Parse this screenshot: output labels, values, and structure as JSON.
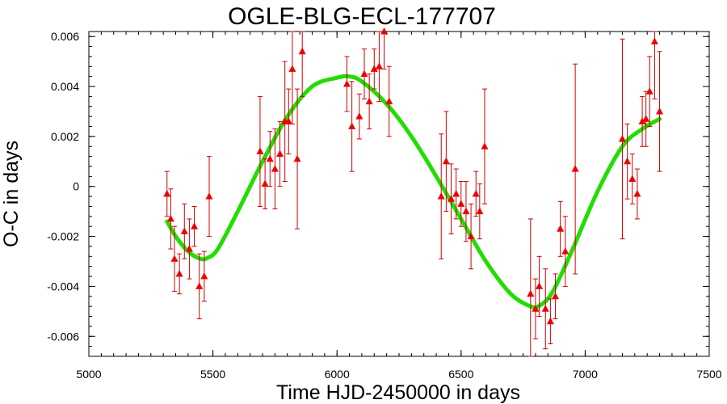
{
  "chart_data": {
    "type": "scatter",
    "title": "OGLE-BLG-ECL-177707",
    "xlabel": "Time HJD-2450000 in days",
    "ylabel": "O-C in days",
    "xlim": [
      5000,
      7500
    ],
    "ylim": [
      -0.0068,
      0.0062
    ],
    "xticks": [
      5000,
      5500,
      6000,
      6500,
      7000,
      7500
    ],
    "xtick_labels": [
      "5000",
      "5500",
      "6000",
      "6500",
      "7000",
      "7500"
    ],
    "yticks": [
      -0.006,
      -0.004,
      -0.002,
      0,
      0.002,
      0.004,
      0.006
    ],
    "ytick_labels": [
      "-0.006",
      "-0.004",
      "-0.002",
      "0",
      "0.002",
      "0.004",
      "0.006"
    ],
    "colors": {
      "points": "#ee0000",
      "error_bars": "#cc0000",
      "fit": "#22dd00"
    },
    "series": [
      {
        "kind": "points_with_error_bars",
        "points": [
          {
            "x": 5315,
            "y": -0.0003,
            "err": 0.0009
          },
          {
            "x": 5330,
            "y": -0.0013,
            "err": 0.0012
          },
          {
            "x": 5345,
            "y": -0.0029,
            "err": 0.0013
          },
          {
            "x": 5365,
            "y": -0.0035,
            "err": 0.0008
          },
          {
            "x": 5385,
            "y": -0.0018,
            "err": 0.0011
          },
          {
            "x": 5405,
            "y": -0.0025,
            "err": 0.0012
          },
          {
            "x": 5425,
            "y": -0.0016,
            "err": 0.0008
          },
          {
            "x": 5445,
            "y": -0.004,
            "err": 0.0013
          },
          {
            "x": 5465,
            "y": -0.0036,
            "err": 0.001
          },
          {
            "x": 5485,
            "y": -0.0004,
            "err": 0.0016
          },
          {
            "x": 5690,
            "y": 0.0014,
            "err": 0.0022
          },
          {
            "x": 5710,
            "y": 0.0001,
            "err": 0.001
          },
          {
            "x": 5730,
            "y": 0.0011,
            "err": 0.0011
          },
          {
            "x": 5750,
            "y": 0.0007,
            "err": 0.0016
          },
          {
            "x": 5770,
            "y": 0.0013,
            "err": 0.0013
          },
          {
            "x": 5790,
            "y": 0.0026,
            "err": 0.0024
          },
          {
            "x": 5805,
            "y": 0.0026,
            "err": 0.0013
          },
          {
            "x": 5820,
            "y": 0.0047,
            "err": 0.0022
          },
          {
            "x": 5840,
            "y": 0.0011,
            "err": 0.0028
          },
          {
            "x": 5860,
            "y": 0.0054,
            "err": 0.0018
          },
          {
            "x": 6040,
            "y": 0.0041,
            "err": 0.0011
          },
          {
            "x": 6060,
            "y": 0.0024,
            "err": 0.0018
          },
          {
            "x": 6090,
            "y": 0.0028,
            "err": 0.0009
          },
          {
            "x": 6110,
            "y": 0.0045,
            "err": 0.001
          },
          {
            "x": 6130,
            "y": 0.0034,
            "err": 0.0011
          },
          {
            "x": 6150,
            "y": 0.0047,
            "err": 0.0008
          },
          {
            "x": 6170,
            "y": 0.0048,
            "err": 0.0014
          },
          {
            "x": 6190,
            "y": 0.0062,
            "err": 0.0015
          },
          {
            "x": 6210,
            "y": 0.0034,
            "err": 0.0014
          },
          {
            "x": 6420,
            "y": -0.0004,
            "err": 0.0025
          },
          {
            "x": 6440,
            "y": 0.001,
            "err": 0.002
          },
          {
            "x": 6460,
            "y": -0.0005,
            "err": 0.0014
          },
          {
            "x": 6480,
            "y": -0.0003,
            "err": 0.001
          },
          {
            "x": 6500,
            "y": -0.0007,
            "err": 0.0009
          },
          {
            "x": 6520,
            "y": -0.001,
            "err": 0.0012
          },
          {
            "x": 6540,
            "y": -0.002,
            "err": 0.0013
          },
          {
            "x": 6560,
            "y": -0.0003,
            "err": 0.0009
          },
          {
            "x": 6575,
            "y": -0.001,
            "err": 0.0011
          },
          {
            "x": 6595,
            "y": 0.0016,
            "err": 0.0023
          },
          {
            "x": 6780,
            "y": -0.0043,
            "err": 0.003
          },
          {
            "x": 6800,
            "y": -0.0049,
            "err": 0.0012
          },
          {
            "x": 6815,
            "y": -0.004,
            "err": 0.0012
          },
          {
            "x": 6840,
            "y": -0.0049,
            "err": 0.0016
          },
          {
            "x": 6860,
            "y": -0.0054,
            "err": 0.0009
          },
          {
            "x": 6880,
            "y": -0.0044,
            "err": 0.0009
          },
          {
            "x": 6900,
            "y": -0.0017,
            "err": 0.0011
          },
          {
            "x": 6920,
            "y": -0.0026,
            "err": 0.0014
          },
          {
            "x": 6960,
            "y": 0.0007,
            "err": 0.0042
          },
          {
            "x": 7150,
            "y": 0.0019,
            "err": 0.004
          },
          {
            "x": 7170,
            "y": 0.001,
            "err": 0.0015
          },
          {
            "x": 7190,
            "y": 0.0003,
            "err": 0.001
          },
          {
            "x": 7210,
            "y": -0.0003,
            "err": 0.001
          },
          {
            "x": 7230,
            "y": 0.0026,
            "err": 0.001
          },
          {
            "x": 7245,
            "y": 0.0027,
            "err": 0.0011
          },
          {
            "x": 7260,
            "y": 0.0038,
            "err": 0.0014
          },
          {
            "x": 7280,
            "y": 0.0058,
            "err": 0.0023
          },
          {
            "x": 7300,
            "y": 0.003,
            "err": 0.0024
          }
        ]
      },
      {
        "kind": "fit_curve",
        "x": [
          5315,
          5350,
          5400,
          5450,
          5480,
          5520,
          5600,
          5700,
          5800,
          5900,
          6000,
          6050,
          6100,
          6200,
          6300,
          6400,
          6500,
          6600,
          6700,
          6780,
          6820,
          6870,
          6950,
          7050,
          7150,
          7230,
          7300
        ],
        "y": [
          -0.0014,
          -0.002,
          -0.0026,
          -0.0029,
          -0.00285,
          -0.0025,
          -0.001,
          0.001,
          0.0028,
          0.004,
          0.00435,
          0.0044,
          0.0042,
          0.0033,
          0.002,
          0.0004,
          -0.0013,
          -0.003,
          -0.0043,
          -0.0048,
          -0.00475,
          -0.0042,
          -0.0025,
          -0.0002,
          0.0016,
          0.0023,
          0.0027
        ]
      }
    ]
  }
}
